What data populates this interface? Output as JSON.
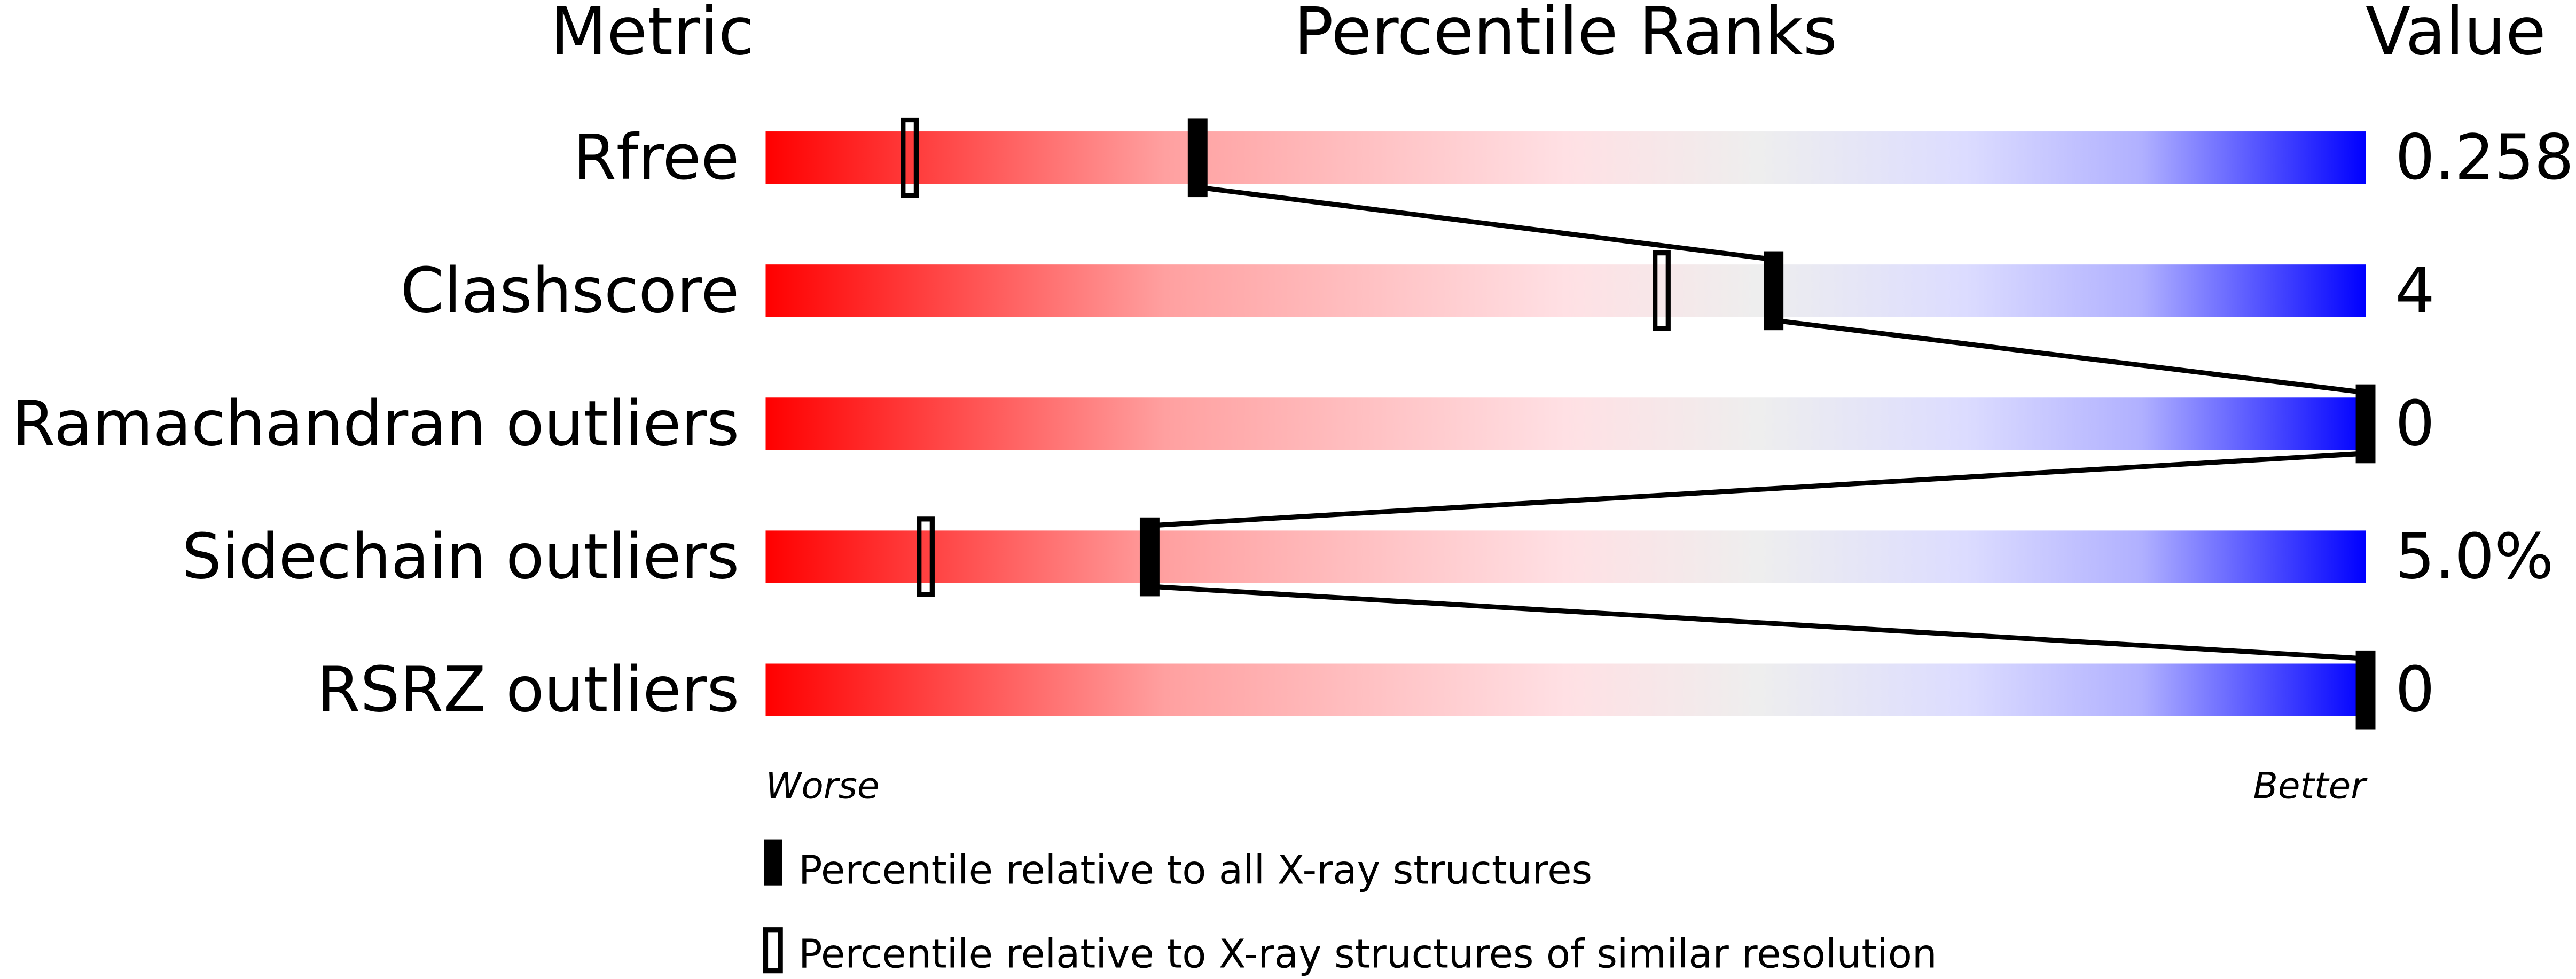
{
  "chart_data": {
    "type": "percentile-slider",
    "headers": {
      "metric": "Metric",
      "ranks": "Percentile Ranks",
      "value": "Value"
    },
    "axis": {
      "min": 0,
      "max": 100,
      "left_label": "Worse",
      "right_label": "Better"
    },
    "gradient_colors": {
      "worse": "#ff0000",
      "middle": "#eeeeee",
      "better": "#0000ff"
    },
    "metrics": [
      {
        "name": "Rfree",
        "value": "0.258",
        "percentile_all": 27,
        "percentile_similar": 9
      },
      {
        "name": "Clashscore",
        "value": "4",
        "percentile_all": 63,
        "percentile_similar": 56
      },
      {
        "name": "Ramachandran outliers",
        "value": "0",
        "percentile_all": 100,
        "percentile_similar": null
      },
      {
        "name": "Sidechain outliers",
        "value": "5.0%",
        "percentile_all": 24,
        "percentile_similar": 10
      },
      {
        "name": "RSRZ outliers",
        "value": "0",
        "percentile_all": 100,
        "percentile_similar": null
      }
    ],
    "legend": [
      {
        "marker": "filled",
        "label": "Percentile relative to all X-ray structures"
      },
      {
        "marker": "open",
        "label": "Percentile relative to X-ray structures of similar resolution"
      }
    ]
  }
}
